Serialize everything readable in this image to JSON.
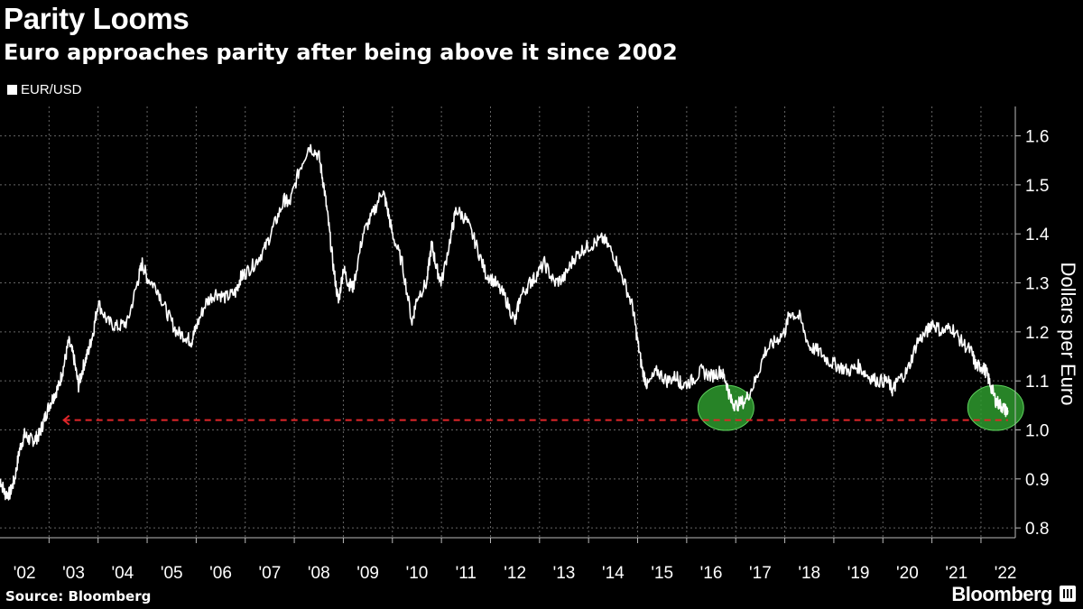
{
  "header": {
    "title": "Parity Looms",
    "subtitle": "Euro approaches parity after being above it since 2002"
  },
  "footer": {
    "source": "Source: Bloomberg",
    "brand": "Bloomberg"
  },
  "chart_data": {
    "type": "line",
    "title": "Parity Looms",
    "subtitle": "Euro approaches parity after being above it since 2002",
    "ylabel": "Dollars per Euro",
    "xlabel": "",
    "ylim": [
      0.78,
      1.66
    ],
    "xlim": [
      2002.0,
      2022.7
    ],
    "yticks": [
      0.8,
      0.9,
      1.0,
      1.1,
      1.2,
      1.3,
      1.4,
      1.5,
      1.6
    ],
    "ytick_labels": [
      "0.8",
      "0.9",
      "1.0",
      "1.1",
      "1.2",
      "1.3",
      "1.4",
      "1.5",
      "1.6"
    ],
    "xtick_labels": [
      "'02",
      "'03",
      "'04",
      "'05",
      "'06",
      "'07",
      "'08",
      "'09",
      "'10",
      "'11",
      "'12",
      "'13",
      "'14",
      "'15",
      "'16",
      "'17",
      "'18",
      "'19",
      "'20",
      "'21",
      "'22"
    ],
    "grid": true,
    "legend_position": "top-left",
    "series": [
      {
        "name": "EUR/USD",
        "color": "#ffffff",
        "x": [
          2002.0,
          2002.1,
          2002.2,
          2002.3,
          2002.4,
          2002.5,
          2002.6,
          2002.7,
          2002.8,
          2002.9,
          2003.0,
          2003.1,
          2003.2,
          2003.3,
          2003.4,
          2003.5,
          2003.6,
          2003.7,
          2003.8,
          2003.9,
          2004.0,
          2004.2,
          2004.4,
          2004.6,
          2004.8,
          2004.9,
          2005.0,
          2005.2,
          2005.4,
          2005.6,
          2005.8,
          2005.9,
          2006.0,
          2006.2,
          2006.4,
          2006.6,
          2006.8,
          2006.9,
          2007.0,
          2007.2,
          2007.4,
          2007.6,
          2007.8,
          2007.9,
          2008.1,
          2008.3,
          2008.5,
          2008.6,
          2008.7,
          2008.8,
          2008.9,
          2009.0,
          2009.1,
          2009.2,
          2009.4,
          2009.6,
          2009.8,
          2009.9,
          2010.0,
          2010.2,
          2010.4,
          2010.5,
          2010.7,
          2010.8,
          2010.9,
          2011.0,
          2011.2,
          2011.3,
          2011.5,
          2011.7,
          2011.9,
          2012.1,
          2012.3,
          2012.5,
          2012.6,
          2012.8,
          2012.9,
          2013.1,
          2013.3,
          2013.5,
          2013.7,
          2013.9,
          2014.1,
          2014.3,
          2014.5,
          2014.7,
          2014.9,
          2015.0,
          2015.1,
          2015.2,
          2015.4,
          2015.6,
          2015.8,
          2015.9,
          2016.1,
          2016.3,
          2016.5,
          2016.7,
          2016.8,
          2016.9,
          2017.0,
          2017.2,
          2017.4,
          2017.6,
          2017.8,
          2018.0,
          2018.1,
          2018.3,
          2018.5,
          2018.7,
          2018.9,
          2019.1,
          2019.3,
          2019.5,
          2019.7,
          2019.9,
          2020.1,
          2020.2,
          2020.3,
          2020.5,
          2020.7,
          2020.9,
          2021.0,
          2021.2,
          2021.4,
          2021.6,
          2021.8,
          2021.9,
          2022.0,
          2022.1,
          2022.2,
          2022.3,
          2022.4,
          2022.5,
          2022.55
        ],
        "y": [
          0.9,
          0.87,
          0.87,
          0.9,
          0.96,
          0.99,
          0.98,
          0.98,
          0.99,
          1.02,
          1.05,
          1.07,
          1.09,
          1.13,
          1.18,
          1.15,
          1.09,
          1.13,
          1.16,
          1.2,
          1.26,
          1.22,
          1.21,
          1.22,
          1.3,
          1.34,
          1.31,
          1.29,
          1.24,
          1.2,
          1.19,
          1.18,
          1.21,
          1.26,
          1.28,
          1.27,
          1.28,
          1.31,
          1.32,
          1.34,
          1.37,
          1.42,
          1.47,
          1.46,
          1.53,
          1.58,
          1.56,
          1.5,
          1.42,
          1.33,
          1.26,
          1.33,
          1.3,
          1.29,
          1.4,
          1.44,
          1.49,
          1.45,
          1.4,
          1.34,
          1.22,
          1.27,
          1.3,
          1.38,
          1.33,
          1.3,
          1.4,
          1.45,
          1.43,
          1.38,
          1.32,
          1.3,
          1.27,
          1.22,
          1.27,
          1.3,
          1.31,
          1.34,
          1.3,
          1.31,
          1.35,
          1.37,
          1.38,
          1.39,
          1.36,
          1.31,
          1.25,
          1.18,
          1.12,
          1.09,
          1.12,
          1.1,
          1.11,
          1.09,
          1.1,
          1.12,
          1.11,
          1.12,
          1.1,
          1.06,
          1.05,
          1.06,
          1.1,
          1.16,
          1.18,
          1.2,
          1.24,
          1.23,
          1.17,
          1.16,
          1.14,
          1.13,
          1.12,
          1.13,
          1.11,
          1.1,
          1.1,
          1.08,
          1.1,
          1.12,
          1.18,
          1.2,
          1.22,
          1.2,
          1.21,
          1.18,
          1.16,
          1.13,
          1.13,
          1.12,
          1.09,
          1.06,
          1.05,
          1.04,
          1.04
        ]
      }
    ],
    "reference_lines": [
      {
        "y": 1.02,
        "x_from": 2003.3,
        "x_to": 2022.55,
        "color": "#e0262a",
        "style": "dashed"
      }
    ],
    "highlights": [
      {
        "x": 2016.8,
        "y": 1.045,
        "color": "#2e9a2e"
      },
      {
        "x": 2022.3,
        "y": 1.045,
        "color": "#2e9a2e"
      }
    ]
  }
}
